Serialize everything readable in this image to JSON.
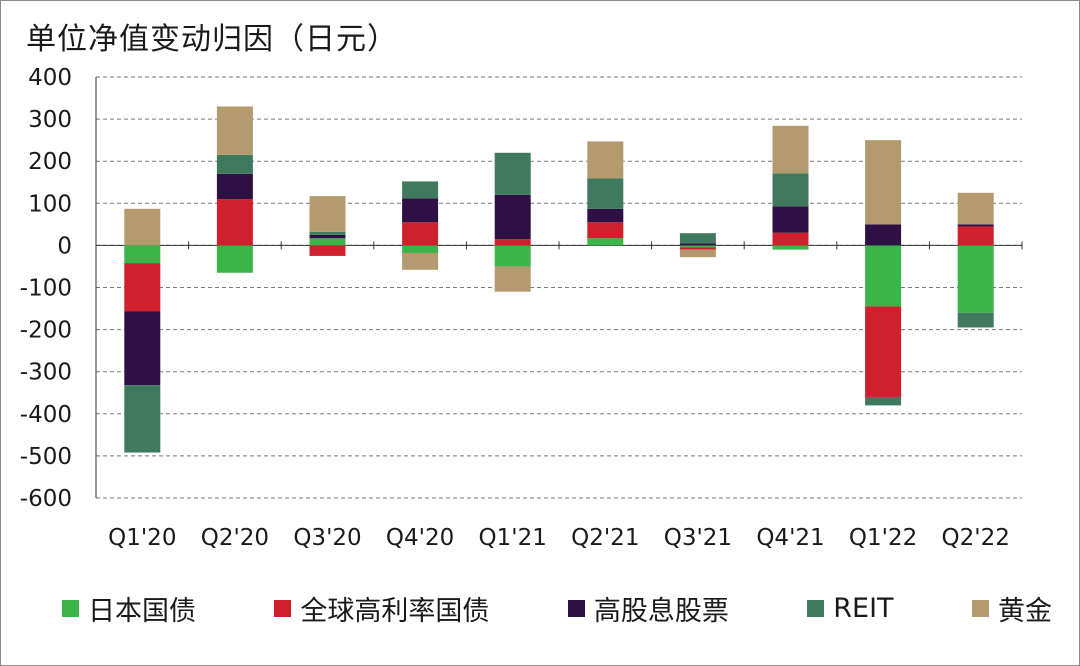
{
  "chart_data": {
    "type": "bar",
    "stacked": true,
    "title": "单位净值变动归因（日元）",
    "categories": [
      "Q1'20",
      "Q2'20",
      "Q3'20",
      "Q4'20",
      "Q1'21",
      "Q2'21",
      "Q3'21",
      "Q4'21",
      "Q1'22",
      "Q2'22"
    ],
    "ylim": [
      -600,
      400
    ],
    "yticks": [
      400,
      300,
      200,
      100,
      0,
      -100,
      -200,
      -300,
      -400,
      -500,
      -600
    ],
    "grid": true,
    "legend_position": "bottom",
    "series": [
      {
        "name": "日本国债",
        "color": "#3bb54a",
        "values": [
          -42,
          -65,
          17,
          -18,
          -50,
          17,
          -5,
          -10,
          -145,
          -160
        ]
      },
      {
        "name": "全球高利率国债",
        "color": "#d0202e",
        "values": [
          -115,
          110,
          -25,
          55,
          15,
          38,
          -5,
          30,
          -215,
          45
        ]
      },
      {
        "name": "高股息股票",
        "color": "#2e1044",
        "values": [
          -175,
          60,
          8,
          57,
          105,
          32,
          5,
          63,
          50,
          5
        ]
      },
      {
        "name": "REIT",
        "color": "#3f7a5e",
        "values": [
          -160,
          45,
          7,
          40,
          100,
          72,
          24,
          78,
          -20,
          -35
        ]
      },
      {
        "name": "黄金",
        "color": "#b39b6f",
        "values": [
          87,
          115,
          85,
          -40,
          -60,
          88,
          -18,
          113,
          200,
          75
        ]
      }
    ]
  }
}
